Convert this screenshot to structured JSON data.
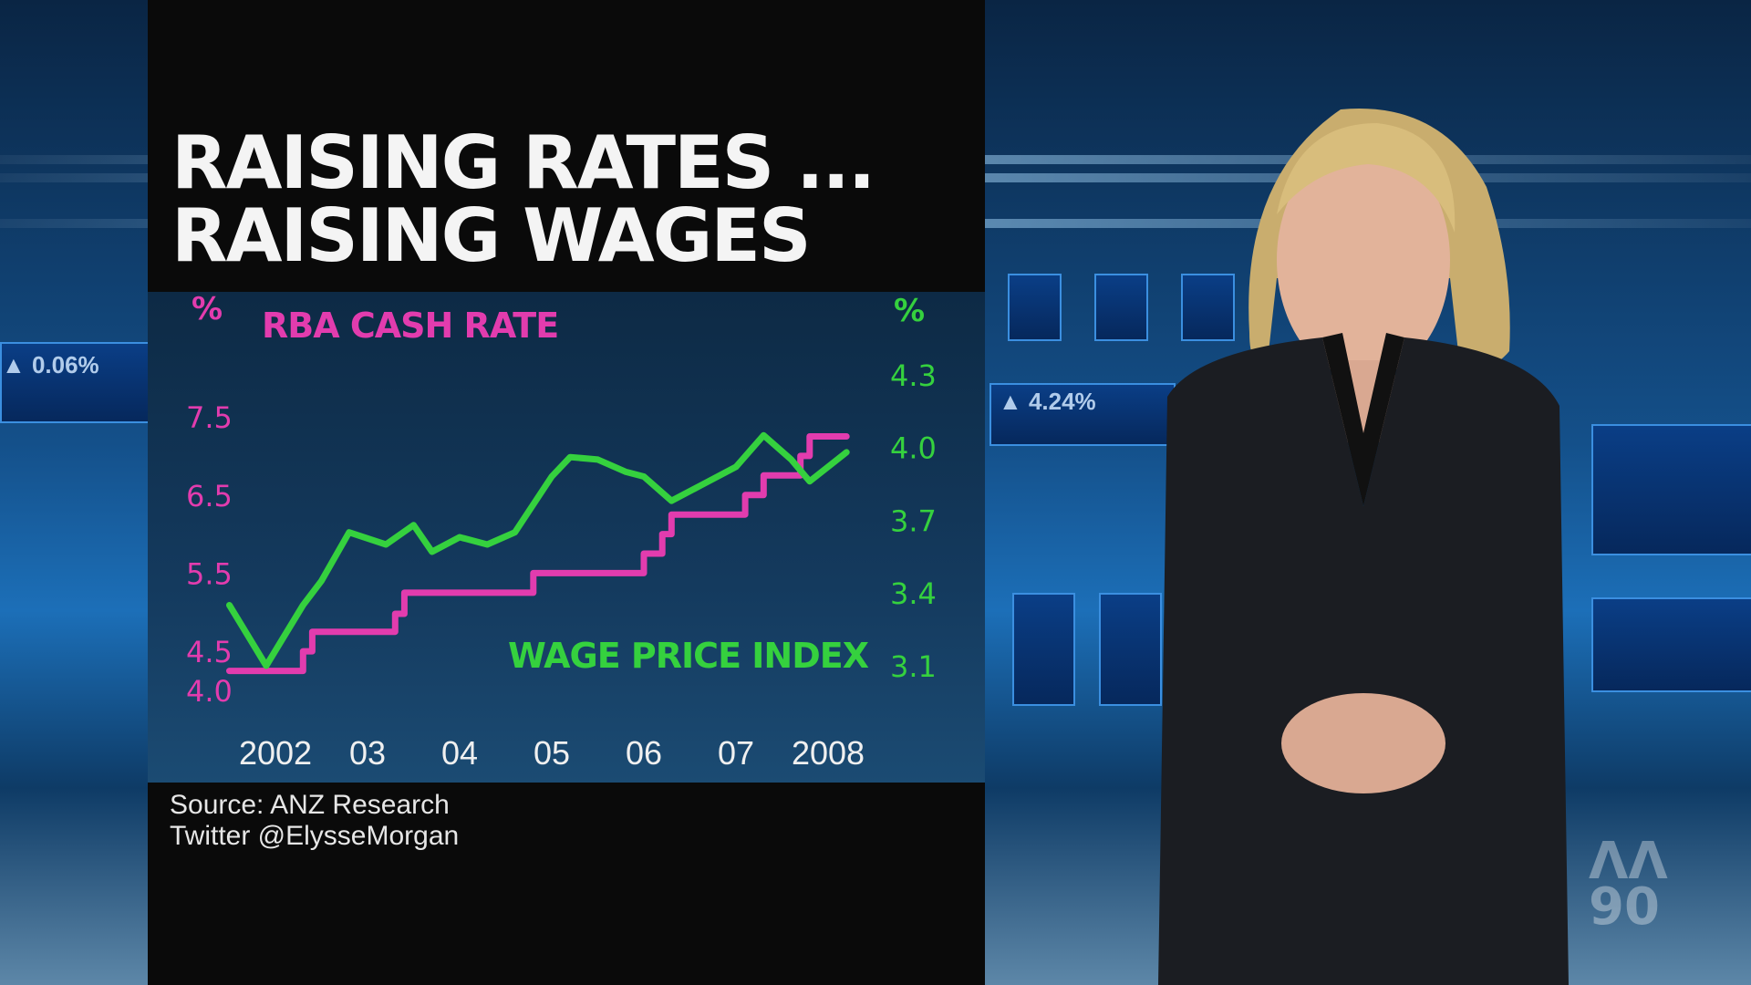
{
  "title_line1": "RAISING RATES ...",
  "title_line2": "RAISING WAGES",
  "source_line1": "Source: ANZ Research",
  "source_line2": "Twitter @ElysseMorgan",
  "studio": {
    "ticker1": "▲ 4.24%",
    "ticker2": "▲ 0.06%"
  },
  "colors": {
    "cash_rate": "#e23cae",
    "wage_index": "#35d13e"
  },
  "chart_data": {
    "type": "line",
    "left_axis": {
      "unit": "%",
      "ticks": [
        "7.5",
        "6.5",
        "5.5",
        "4.5",
        "4.0"
      ],
      "range": [
        4.0,
        7.5
      ]
    },
    "right_axis": {
      "unit": "%",
      "ticks": [
        "4.3",
        "4.0",
        "3.7",
        "3.4",
        "3.1"
      ],
      "range": [
        3.1,
        4.3
      ]
    },
    "x_ticks": [
      {
        "label": "2002",
        "x": 2002
      },
      {
        "label": "03",
        "x": 2003
      },
      {
        "label": "04",
        "x": 2004
      },
      {
        "label": "05",
        "x": 2005
      },
      {
        "label": "06",
        "x": 2006
      },
      {
        "label": "07",
        "x": 2007
      },
      {
        "label": "2008",
        "x": 2008
      }
    ],
    "series": [
      {
        "name": "RBA CASH RATE",
        "axis": "left",
        "type": "step",
        "points": [
          [
            2001.5,
            4.25
          ],
          [
            2002.3,
            4.25
          ],
          [
            2002.3,
            4.5
          ],
          [
            2002.4,
            4.5
          ],
          [
            2002.4,
            4.75
          ],
          [
            2003.3,
            4.75
          ],
          [
            2003.3,
            4.98
          ],
          [
            2003.4,
            4.98
          ],
          [
            2003.4,
            5.25
          ],
          [
            2004.8,
            5.25
          ],
          [
            2004.8,
            5.5
          ],
          [
            2006.0,
            5.5
          ],
          [
            2006.0,
            5.75
          ],
          [
            2006.2,
            5.75
          ],
          [
            2006.2,
            6.0
          ],
          [
            2006.3,
            6.0
          ],
          [
            2006.3,
            6.25
          ],
          [
            2007.1,
            6.25
          ],
          [
            2007.1,
            6.5
          ],
          [
            2007.3,
            6.5
          ],
          [
            2007.3,
            6.75
          ],
          [
            2007.7,
            6.75
          ],
          [
            2007.7,
            7.0
          ],
          [
            2007.8,
            7.0
          ],
          [
            2007.8,
            7.25
          ],
          [
            2008.2,
            7.25
          ]
        ]
      },
      {
        "name": "WAGE PRICE INDEX",
        "axis": "right",
        "type": "line",
        "points": [
          [
            2001.5,
            3.35
          ],
          [
            2001.9,
            3.1
          ],
          [
            2002.3,
            3.35
          ],
          [
            2002.5,
            3.45
          ],
          [
            2002.8,
            3.65
          ],
          [
            2003.2,
            3.6
          ],
          [
            2003.5,
            3.68
          ],
          [
            2003.7,
            3.57
          ],
          [
            2004.0,
            3.63
          ],
          [
            2004.3,
            3.6
          ],
          [
            2004.6,
            3.65
          ],
          [
            2005.0,
            3.88
          ],
          [
            2005.2,
            3.96
          ],
          [
            2005.5,
            3.95
          ],
          [
            2005.8,
            3.9
          ],
          [
            2006.0,
            3.88
          ],
          [
            2006.3,
            3.78
          ],
          [
            2006.6,
            3.84
          ],
          [
            2007.0,
            3.92
          ],
          [
            2007.3,
            4.05
          ],
          [
            2007.6,
            3.95
          ],
          [
            2007.8,
            3.86
          ],
          [
            2008.2,
            3.98
          ]
        ]
      }
    ]
  }
}
